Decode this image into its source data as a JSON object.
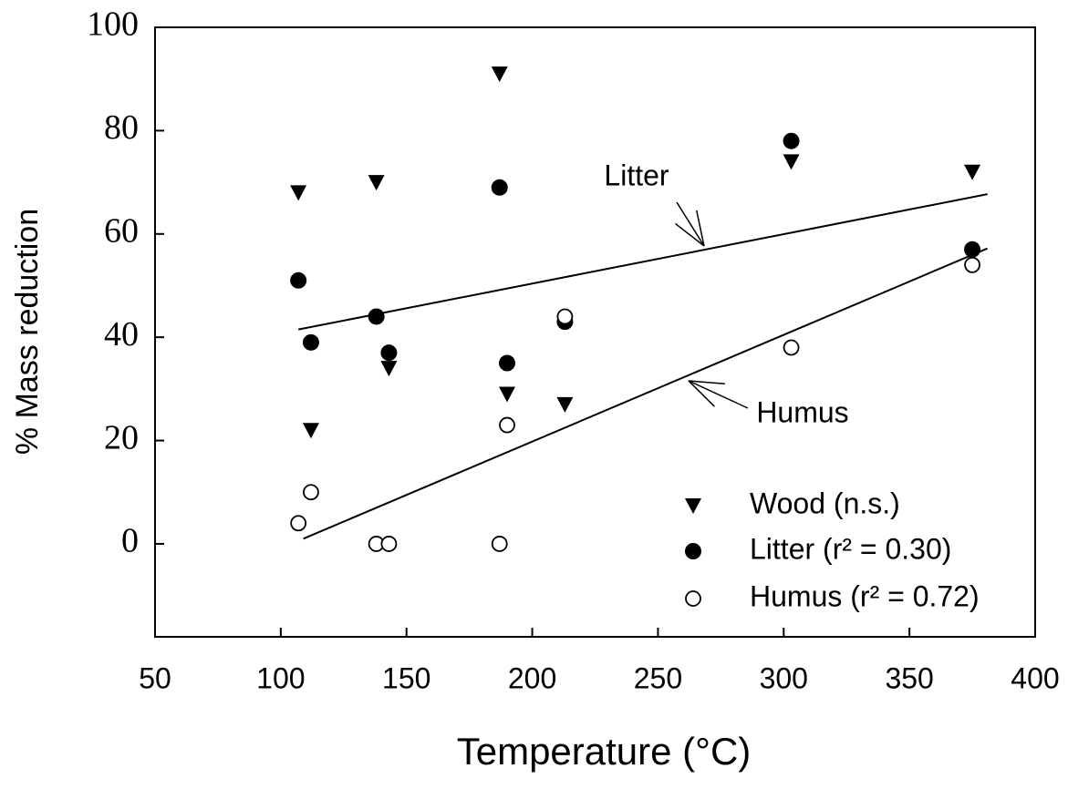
{
  "chart_data": {
    "type": "scatter",
    "xlabel": "Temperature (°C)",
    "ylabel": "% Mass reduction",
    "xlim": [
      50,
      400
    ],
    "ylim": [
      -18,
      100
    ],
    "xticks": [
      50,
      100,
      150,
      200,
      250,
      300,
      350,
      400
    ],
    "yticks": [
      0,
      20,
      40,
      60,
      80,
      100
    ],
    "grid": false,
    "legend": "lower right",
    "series": [
      {
        "name": "Wood (n.s.)",
        "marker": "triangle-down",
        "color": "#000000",
        "x": [
          107,
          112,
          138,
          143,
          187,
          190,
          213,
          303,
          375
        ],
        "values": [
          68,
          22,
          70,
          34,
          91,
          29,
          27,
          74,
          72
        ]
      },
      {
        "name": "Litter (r² = 0.30)",
        "marker": "circle-filled",
        "color": "#000000",
        "x": [
          107,
          112,
          138,
          143,
          187,
          190,
          213,
          303,
          375
        ],
        "values": [
          51,
          39,
          44,
          37,
          69,
          35,
          43,
          78,
          57
        ]
      },
      {
        "name": "Humus (r² = 0.72)",
        "marker": "circle-open",
        "color": "#000000",
        "x": [
          107,
          112,
          138,
          143,
          187,
          190,
          213,
          303,
          375
        ],
        "values": [
          4,
          10,
          0,
          0,
          0,
          23,
          44,
          38,
          54
        ]
      }
    ],
    "fits": [
      {
        "name": "Litter",
        "x": [
          107,
          381
        ],
        "values": [
          41.5,
          67.7
        ]
      },
      {
        "name": "Humus",
        "x": [
          109,
          381
        ],
        "values": [
          1,
          57.2
        ]
      }
    ]
  }
}
